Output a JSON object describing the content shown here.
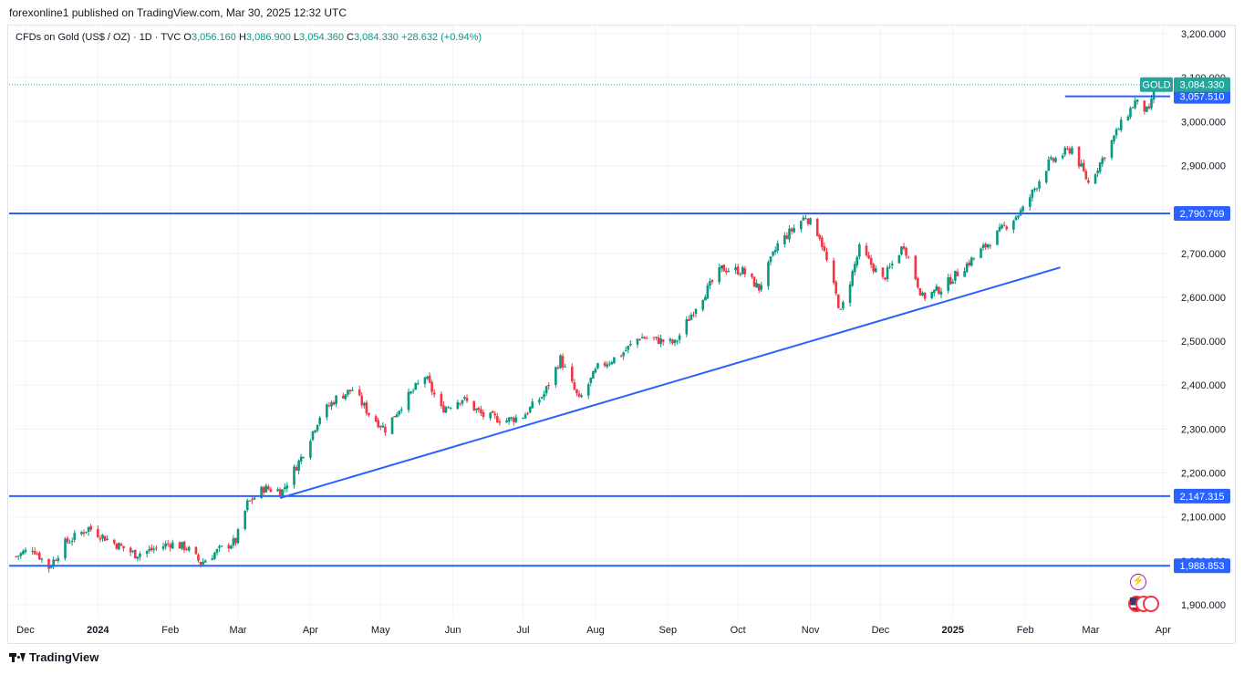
{
  "publisher_line": "forexonline1 published on TradingView.com, Mar 30, 2025 12:32 UTC",
  "legend": {
    "symbol": "CFDs on Gold (US$ / OZ) · 1D · TVC",
    "open_label": "O",
    "open": "3,056.160",
    "high_label": "H",
    "high": "3,086.900",
    "low_label": "L",
    "low": "3,054.360",
    "close_label": "C",
    "close": "3,084.330",
    "change": "+28.632 (+0.94%)"
  },
  "footer_brand": "TradingView",
  "colors": {
    "up": "#089981",
    "down": "#f23645",
    "hline": "#2962ff",
    "badge": "#2962ff",
    "price": "#26a69a"
  },
  "icons": [
    "flash-icon",
    "us-flag-icon"
  ],
  "chart_data": {
    "type": "candlestick",
    "ylim": [
      1880,
      3210
    ],
    "y_ticks": [
      "3,200.000",
      "3,100.000",
      "3,000.000",
      "2,900.000",
      "2,800.000",
      "2,700.000",
      "2,600.000",
      "2,500.000",
      "2,400.000",
      "2,300.000",
      "2,200.000",
      "2,100.000",
      "2,000.000",
      "1,900.000"
    ],
    "y_tick_values": [
      3200,
      3100,
      3000,
      2900,
      2800,
      2700,
      2600,
      2500,
      2400,
      2300,
      2200,
      2100,
      2000,
      1900
    ],
    "x_labels": [
      "Dec",
      "2024",
      "Feb",
      "Mar",
      "Apr",
      "May",
      "Jun",
      "Jul",
      "Aug",
      "Sep",
      "Oct",
      "Nov",
      "Dec",
      "2025",
      "Feb",
      "Mar",
      "Apr"
    ],
    "x_label_dates": [
      "2023-12-01",
      "2024-01-01",
      "2024-02-01",
      "2024-03-01",
      "2024-04-01",
      "2024-05-01",
      "2024-06-01",
      "2024-07-01",
      "2024-08-01",
      "2024-09-01",
      "2024-10-01",
      "2024-11-01",
      "2024-12-01",
      "2025-01-01",
      "2025-02-01",
      "2025-03-01",
      "2025-04-01"
    ],
    "date_range": [
      "2023-11-24",
      "2025-04-04"
    ],
    "close_path": [
      [
        "2023-11-27",
        2010
      ],
      [
        "2023-12-04",
        2030
      ],
      [
        "2023-12-11",
        1985
      ],
      [
        "2023-12-18",
        2040
      ],
      [
        "2023-12-28",
        2075
      ],
      [
        "2024-01-08",
        2040
      ],
      [
        "2024-01-17",
        2015
      ],
      [
        "2024-01-24",
        2025
      ],
      [
        "2024-02-01",
        2040
      ],
      [
        "2024-02-08",
        2030
      ],
      [
        "2024-02-14",
        1995
      ],
      [
        "2024-02-22",
        2025
      ],
      [
        "2024-02-29",
        2045
      ],
      [
        "2024-03-05",
        2130
      ],
      [
        "2024-03-12",
        2165
      ],
      [
        "2024-03-20",
        2160
      ],
      [
        "2024-03-28",
        2235
      ],
      [
        "2024-04-05",
        2330
      ],
      [
        "2024-04-12",
        2370
      ],
      [
        "2024-04-19",
        2390
      ],
      [
        "2024-04-26",
        2335
      ],
      [
        "2024-05-03",
        2300
      ],
      [
        "2024-05-10",
        2355
      ],
      [
        "2024-05-20",
        2420
      ],
      [
        "2024-05-27",
        2345
      ],
      [
        "2024-06-05",
        2370
      ],
      [
        "2024-06-14",
        2330
      ],
      [
        "2024-06-24",
        2320
      ],
      [
        "2024-07-01",
        2330
      ],
      [
        "2024-07-10",
        2380
      ],
      [
        "2024-07-17",
        2460
      ],
      [
        "2024-07-25",
        2365
      ],
      [
        "2024-08-02",
        2440
      ],
      [
        "2024-08-12",
        2470
      ],
      [
        "2024-08-20",
        2510
      ],
      [
        "2024-09-04",
        2495
      ],
      [
        "2024-09-13",
        2580
      ],
      [
        "2024-09-24",
        2665
      ],
      [
        "2024-10-03",
        2660
      ],
      [
        "2024-10-10",
        2620
      ],
      [
        "2024-10-18",
        2720
      ],
      [
        "2024-10-30",
        2785
      ],
      [
        "2024-11-05",
        2740
      ],
      [
        "2024-11-14",
        2565
      ],
      [
        "2024-11-22",
        2710
      ],
      [
        "2024-12-02",
        2640
      ],
      [
        "2024-12-11",
        2720
      ],
      [
        "2024-12-19",
        2600
      ],
      [
        "2024-12-27",
        2620
      ],
      [
        "2025-01-10",
        2690
      ],
      [
        "2025-01-22",
        2755
      ],
      [
        "2025-01-31",
        2800
      ],
      [
        "2025-02-11",
        2905
      ],
      [
        "2025-02-21",
        2940
      ],
      [
        "2025-02-28",
        2860
      ],
      [
        "2025-03-06",
        2915
      ],
      [
        "2025-03-13",
        2985
      ],
      [
        "2025-03-20",
        3045
      ],
      [
        "2025-03-26",
        3020
      ],
      [
        "2025-03-28",
        3084.33
      ]
    ],
    "horizontal_lines": [
      {
        "price": 2790.769,
        "label": "2,790.769"
      },
      {
        "price": 2147.315,
        "label": "2,147.315"
      },
      {
        "price": 1988.853,
        "label": "1,988.853"
      }
    ],
    "short_resistance": {
      "price": 3057.51,
      "label": "3,057.510",
      "from": "2025-02-18",
      "to": "2025-04-04"
    },
    "trendline": {
      "from": [
        "2024-03-19",
        2143
      ],
      "to": [
        "2025-02-16",
        2668
      ]
    },
    "last_price": {
      "price": 3084.33,
      "label": "3,084.330",
      "symbol_badge": "GOLD"
    }
  }
}
